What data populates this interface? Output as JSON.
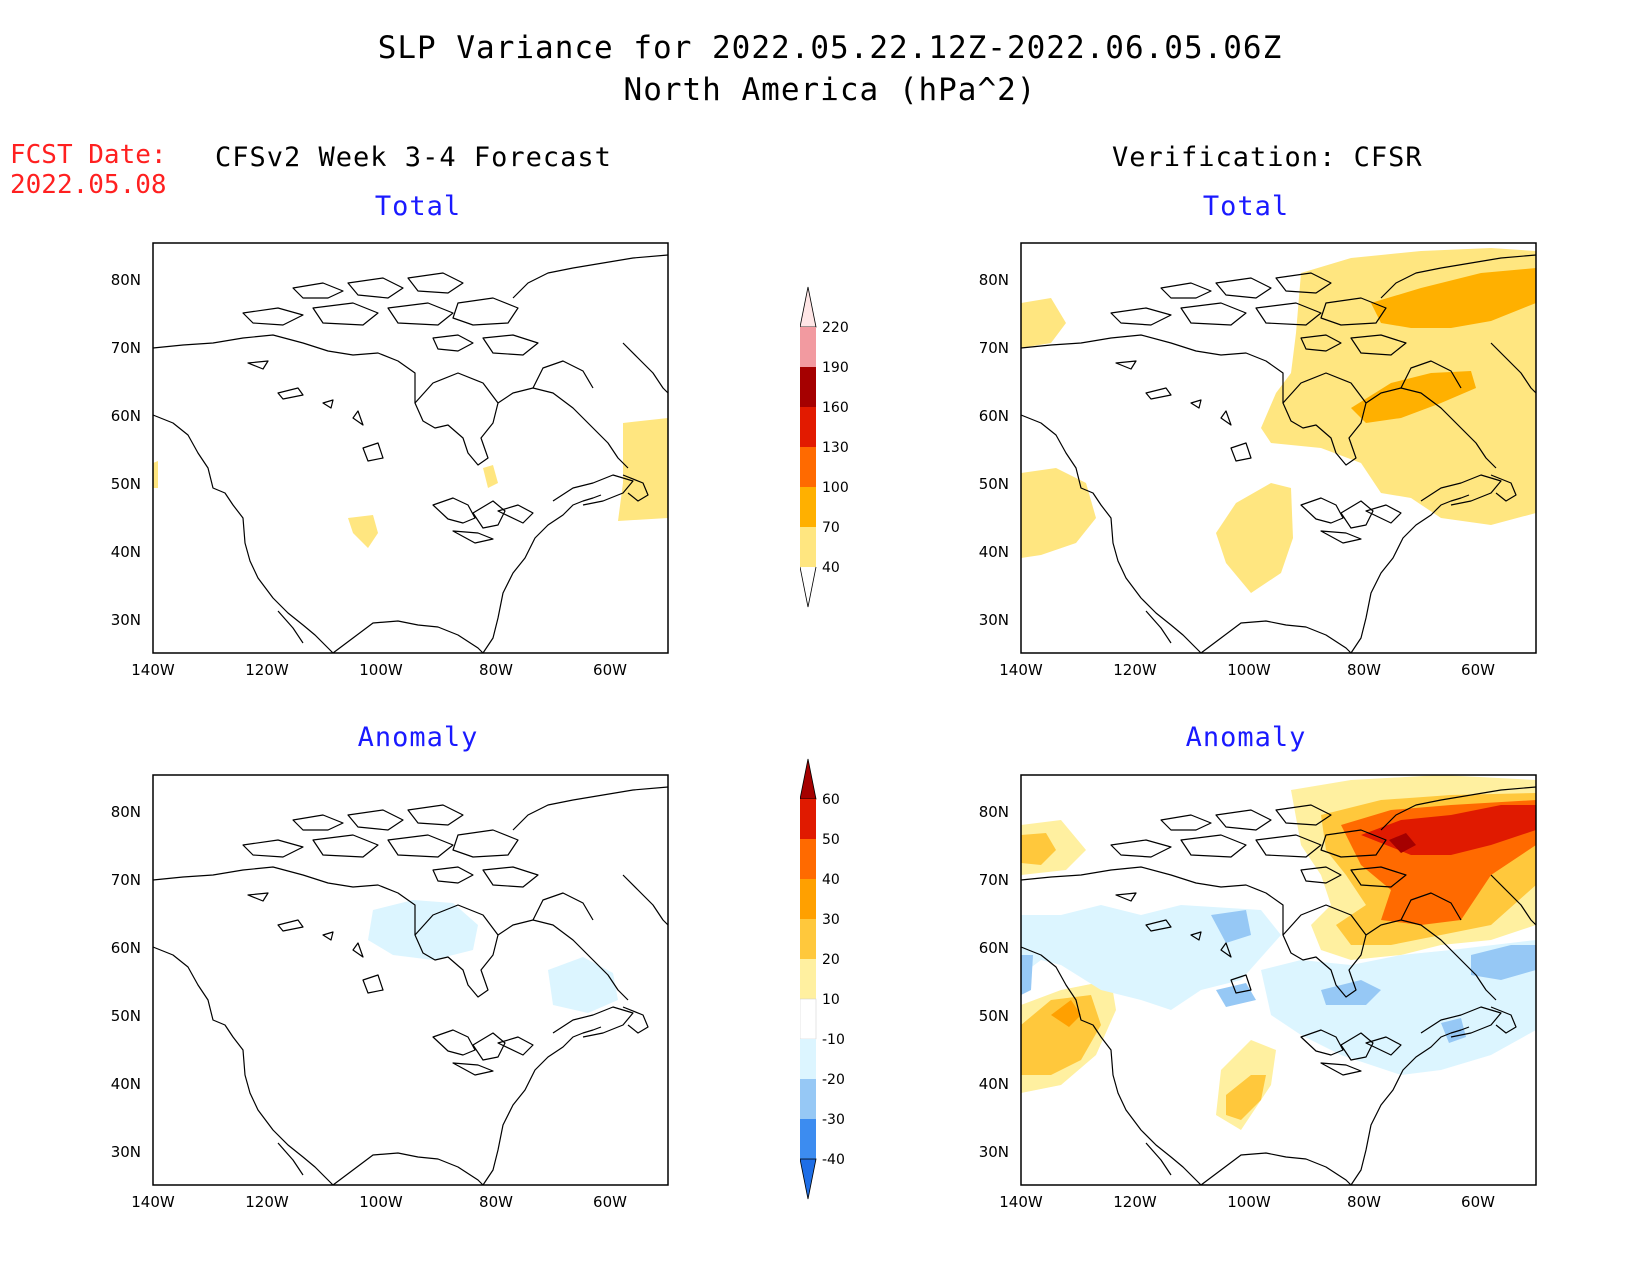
{
  "header": {
    "title_line1": "SLP Variance for 2022.05.22.12Z-2022.06.05.06Z",
    "title_line2": "North America (hPa^2)"
  },
  "fcst": {
    "label": "FCST Date:",
    "date": "2022.05.08"
  },
  "columns": {
    "left": "CFSv2 Week 3-4 Forecast",
    "right": "Verification: CFSR"
  },
  "panels": {
    "fcst_total": "Total",
    "fcst_anomaly": "Anomaly",
    "verif_total": "Total",
    "verif_anomaly": "Anomaly"
  },
  "axes": {
    "lat_labels": [
      "80N",
      "70N",
      "60N",
      "50N",
      "40N",
      "30N"
    ],
    "lon_labels": [
      "140W",
      "120W",
      "100W",
      "80W",
      "60W"
    ]
  },
  "colorbar_total": {
    "levels": [
      "40",
      "70",
      "100",
      "130",
      "160",
      "190",
      "220"
    ],
    "colors": [
      "#ffe680",
      "#ffb000",
      "#ff6a00",
      "#e21a00",
      "#a50000",
      "#f29aa0",
      "#ffe6e6"
    ]
  },
  "colorbar_anomaly": {
    "levels": [
      "-40",
      "-30",
      "-20",
      "-10",
      "10",
      "20",
      "30",
      "40",
      "50",
      "60"
    ],
    "colors": [
      "#1e6ee6",
      "#3c8cf0",
      "#96c8f5",
      "#dcf5ff",
      "#ffffff",
      "#fff0a0",
      "#ffc83c",
      "#ffa000",
      "#ff6a00",
      "#e01a00",
      "#a50000"
    ]
  }
}
